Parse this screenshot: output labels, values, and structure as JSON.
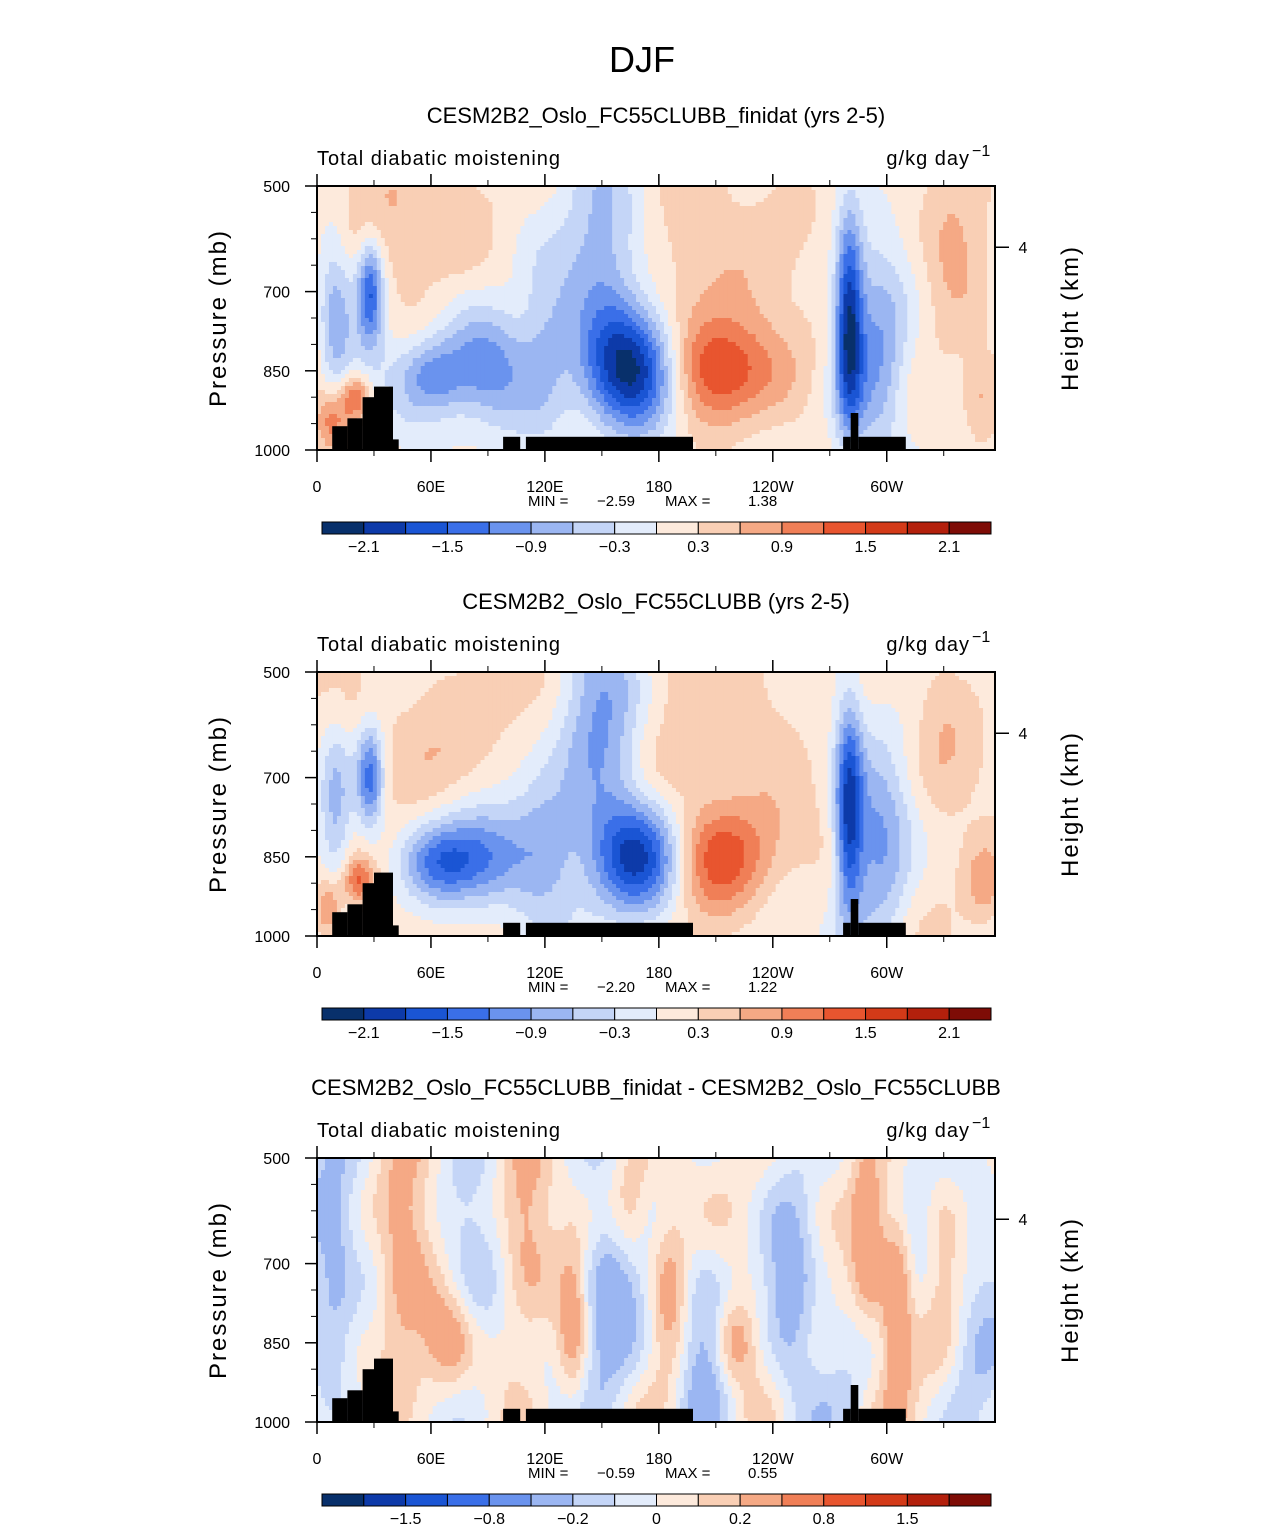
{
  "figure": {
    "title": "DJF",
    "palette": [
      "#08306b",
      "#0d3aa9",
      "#1a55d4",
      "#3a6fe8",
      "#6a93ee",
      "#9bb6f2",
      "#c4d5f7",
      "#e3ecfb",
      "#fdeadc",
      "#f9cfb5",
      "#f5a985",
      "#f07f57",
      "#e8552f",
      "#d33a18",
      "#b3200c",
      "#7e0c06"
    ]
  },
  "chart_data": [
    {
      "type": "heatmap",
      "title": "CESM2B2_Oslo_FC55CLUBB_finidat (yrs 2-5)",
      "left_label": "Total diabatic moistening",
      "right_label": "g/kg day",
      "right_label_exp": "−1",
      "ylabel": "Pressure (mb)",
      "ylabel_right": "Height (km)",
      "yticks": [
        "500",
        "700",
        "850",
        "1000"
      ],
      "ytick_values": [
        500,
        700,
        850,
        1000
      ],
      "yticks_right": [
        "4"
      ],
      "ytick_right_pressure": 616,
      "xticks": [
        "0",
        "60E",
        "120E",
        "180",
        "120W",
        "60W"
      ],
      "xtick_values": [
        0,
        60,
        120,
        180,
        240,
        300
      ],
      "xlim": [
        0,
        357
      ],
      "ylim": [
        1000,
        500
      ],
      "stats": {
        "min_label": "MIN =",
        "min": "−2.59",
        "max_label": "MAX =",
        "max": "1.38"
      },
      "colorbar": {
        "ticks": [
          "−2.1",
          "−1.5",
          "−0.9",
          "−0.3",
          "0.3",
          "0.9",
          "1.5",
          "2.1"
        ],
        "tick_positions": [
          1,
          3,
          5,
          7,
          9,
          11,
          13,
          15
        ]
      },
      "field": {
        "blobs": [
          {
            "lon": 28,
            "p": 700,
            "amp": -1.7,
            "slon": 5,
            "sp": 70
          },
          {
            "lon": 10,
            "p": 750,
            "amp": -0.9,
            "slon": 6,
            "sp": 120
          },
          {
            "lon": 20,
            "p": 900,
            "amp": 1.1,
            "slon": 6,
            "sp": 30
          },
          {
            "lon": 8,
            "p": 950,
            "amp": 0.9,
            "slon": 6,
            "sp": 40
          },
          {
            "lon": 60,
            "p": 860,
            "amp": -1.0,
            "slon": 12,
            "sp": 50
          },
          {
            "lon": 90,
            "p": 850,
            "amp": -1.2,
            "slon": 18,
            "sp": 80
          },
          {
            "lon": 120,
            "p": 800,
            "amp": -0.7,
            "slon": 10,
            "sp": 110
          },
          {
            "lon": 170,
            "p": 850,
            "amp": -2.4,
            "slon": 18,
            "sp": 80
          },
          {
            "lon": 150,
            "p": 620,
            "amp": -1.3,
            "slon": 16,
            "sp": 140
          },
          {
            "lon": 210,
            "p": 850,
            "amp": 1.3,
            "slon": 24,
            "sp": 70
          },
          {
            "lon": 200,
            "p": 650,
            "amp": 0.5,
            "slon": 35,
            "sp": 160
          },
          {
            "lon": 280,
            "p": 760,
            "amp": -2.0,
            "slon": 5,
            "sp": 140
          },
          {
            "lon": 295,
            "p": 820,
            "amp": -1.0,
            "slon": 12,
            "sp": 150
          },
          {
            "lon": 335,
            "p": 600,
            "amp": 0.6,
            "slon": 12,
            "sp": 120
          },
          {
            "lon": 350,
            "p": 900,
            "amp": 0.7,
            "slon": 8,
            "sp": 60
          },
          {
            "lon": 60,
            "p": 560,
            "amp": 0.4,
            "slon": 40,
            "sp": 100
          }
        ],
        "noise": 0.18,
        "seed": 3
      }
    },
    {
      "type": "heatmap",
      "title": "CESM2B2_Oslo_FC55CLUBB (yrs 2-5)",
      "left_label": "Total diabatic moistening",
      "right_label": "g/kg day",
      "right_label_exp": "−1",
      "ylabel": "Pressure (mb)",
      "ylabel_right": "Height (km)",
      "yticks": [
        "500",
        "700",
        "850",
        "1000"
      ],
      "ytick_values": [
        500,
        700,
        850,
        1000
      ],
      "yticks_right": [
        "4"
      ],
      "ytick_right_pressure": 616,
      "xticks": [
        "0",
        "60E",
        "120E",
        "180",
        "120W",
        "60W"
      ],
      "xtick_values": [
        0,
        60,
        120,
        180,
        240,
        300
      ],
      "xlim": [
        0,
        357
      ],
      "ylim": [
        1000,
        500
      ],
      "stats": {
        "min_label": "MIN =",
        "min": "−2.20",
        "max_label": "MAX =",
        "max": "1.22"
      },
      "colorbar": {
        "ticks": [
          "−2.1",
          "−1.5",
          "−0.9",
          "−0.3",
          "0.3",
          "0.9",
          "1.5",
          "2.1"
        ],
        "tick_positions": [
          1,
          3,
          5,
          7,
          9,
          11,
          13,
          15
        ]
      },
      "field": {
        "blobs": [
          {
            "lon": 28,
            "p": 700,
            "amp": -1.5,
            "slon": 5,
            "sp": 70
          },
          {
            "lon": 10,
            "p": 760,
            "amp": -0.8,
            "slon": 6,
            "sp": 120
          },
          {
            "lon": 22,
            "p": 895,
            "amp": 1.0,
            "slon": 6,
            "sp": 30
          },
          {
            "lon": 6,
            "p": 950,
            "amp": 1.0,
            "slon": 5,
            "sp": 40
          },
          {
            "lon": 65,
            "p": 860,
            "amp": -1.1,
            "slon": 14,
            "sp": 50
          },
          {
            "lon": 90,
            "p": 850,
            "amp": -1.2,
            "slon": 16,
            "sp": 70
          },
          {
            "lon": 120,
            "p": 830,
            "amp": -0.8,
            "slon": 12,
            "sp": 100
          },
          {
            "lon": 170,
            "p": 850,
            "amp": -2.1,
            "slon": 18,
            "sp": 75
          },
          {
            "lon": 150,
            "p": 620,
            "amp": -1.3,
            "slon": 16,
            "sp": 140
          },
          {
            "lon": 210,
            "p": 850,
            "amp": 1.1,
            "slon": 24,
            "sp": 70
          },
          {
            "lon": 200,
            "p": 650,
            "amp": 0.45,
            "slon": 35,
            "sp": 160
          },
          {
            "lon": 280,
            "p": 760,
            "amp": -1.8,
            "slon": 5,
            "sp": 140
          },
          {
            "lon": 295,
            "p": 830,
            "amp": -1.0,
            "slon": 12,
            "sp": 150
          },
          {
            "lon": 330,
            "p": 620,
            "amp": 0.5,
            "slon": 12,
            "sp": 120
          },
          {
            "lon": 352,
            "p": 900,
            "amp": 0.8,
            "slon": 8,
            "sp": 60
          },
          {
            "lon": 70,
            "p": 600,
            "amp": 0.35,
            "slon": 40,
            "sp": 120
          }
        ],
        "noise": 0.18,
        "seed": 11
      }
    },
    {
      "type": "heatmap",
      "title": "CESM2B2_Oslo_FC55CLUBB_finidat - CESM2B2_Oslo_FC55CLUBB",
      "left_label": "Total diabatic moistening",
      "right_label": "g/kg day",
      "right_label_exp": "−1",
      "ylabel": "Pressure (mb)",
      "ylabel_right": "Height (km)",
      "yticks": [
        "500",
        "700",
        "850",
        "1000"
      ],
      "ytick_values": [
        500,
        700,
        850,
        1000
      ],
      "yticks_right": [
        "4"
      ],
      "ytick_right_pressure": 616,
      "xticks": [
        "0",
        "60E",
        "120E",
        "180",
        "120W",
        "60W"
      ],
      "xtick_values": [
        0,
        60,
        120,
        180,
        240,
        300
      ],
      "xlim": [
        0,
        357
      ],
      "ylim": [
        1000,
        500
      ],
      "stats": {
        "min_label": "MIN =",
        "min": "−0.59",
        "max_label": "MAX =",
        "max": "0.55"
      },
      "colorbar": {
        "ticks": [
          "−1.5",
          "−0.8",
          "−0.2",
          "0",
          "0.2",
          "0.8",
          "1.5"
        ],
        "tick_positions": [
          2,
          4,
          6,
          8,
          10,
          12,
          14
        ]
      },
      "field": {
        "blobs": [
          {
            "lon": 8,
            "p": 720,
            "amp": -0.25,
            "slon": 8,
            "sp": 150
          },
          {
            "lon": 45,
            "p": 700,
            "amp": 0.3,
            "slon": 10,
            "sp": 160
          },
          {
            "lon": 70,
            "p": 850,
            "amp": 0.35,
            "slon": 10,
            "sp": 70
          },
          {
            "lon": 80,
            "p": 700,
            "amp": -0.25,
            "slon": 12,
            "sp": 150
          },
          {
            "lon": 110,
            "p": 640,
            "amp": 0.28,
            "slon": 10,
            "sp": 140
          },
          {
            "lon": 135,
            "p": 820,
            "amp": 0.35,
            "slon": 6,
            "sp": 110
          },
          {
            "lon": 155,
            "p": 800,
            "amp": -0.3,
            "slon": 12,
            "sp": 140
          },
          {
            "lon": 165,
            "p": 600,
            "amp": 0.3,
            "slon": 8,
            "sp": 90
          },
          {
            "lon": 185,
            "p": 760,
            "amp": 0.3,
            "slon": 7,
            "sp": 120
          },
          {
            "lon": 205,
            "p": 820,
            "amp": -0.3,
            "slon": 10,
            "sp": 120
          },
          {
            "lon": 220,
            "p": 850,
            "amp": 0.35,
            "slon": 8,
            "sp": 60
          },
          {
            "lon": 250,
            "p": 780,
            "amp": -0.3,
            "slon": 10,
            "sp": 160
          },
          {
            "lon": 290,
            "p": 650,
            "amp": 0.4,
            "slon": 6,
            "sp": 120
          },
          {
            "lon": 305,
            "p": 760,
            "amp": 0.45,
            "slon": 6,
            "sp": 130
          },
          {
            "lon": 330,
            "p": 700,
            "amp": 0.2,
            "slon": 8,
            "sp": 160
          },
          {
            "lon": 350,
            "p": 700,
            "amp": -0.18,
            "slon": 15,
            "sp": 200
          }
        ],
        "noise": 0.12,
        "seed": 27
      }
    }
  ],
  "topography": [
    {
      "lon0": 8,
      "lon1": 16,
      "p": 955
    },
    {
      "lon0": 16,
      "lon1": 24,
      "p": 940
    },
    {
      "lon0": 24,
      "lon1": 30,
      "p": 900
    },
    {
      "lon0": 30,
      "lon1": 40,
      "p": 880
    },
    {
      "lon0": 40,
      "lon1": 43,
      "p": 980
    },
    {
      "lon0": 98,
      "lon1": 107,
      "p": 975
    },
    {
      "lon0": 110,
      "lon1": 198,
      "p": 975
    },
    {
      "lon0": 277,
      "lon1": 281,
      "p": 975
    },
    {
      "lon0": 281,
      "lon1": 285,
      "p": 930
    },
    {
      "lon0": 285,
      "lon1": 310,
      "p": 975
    }
  ]
}
